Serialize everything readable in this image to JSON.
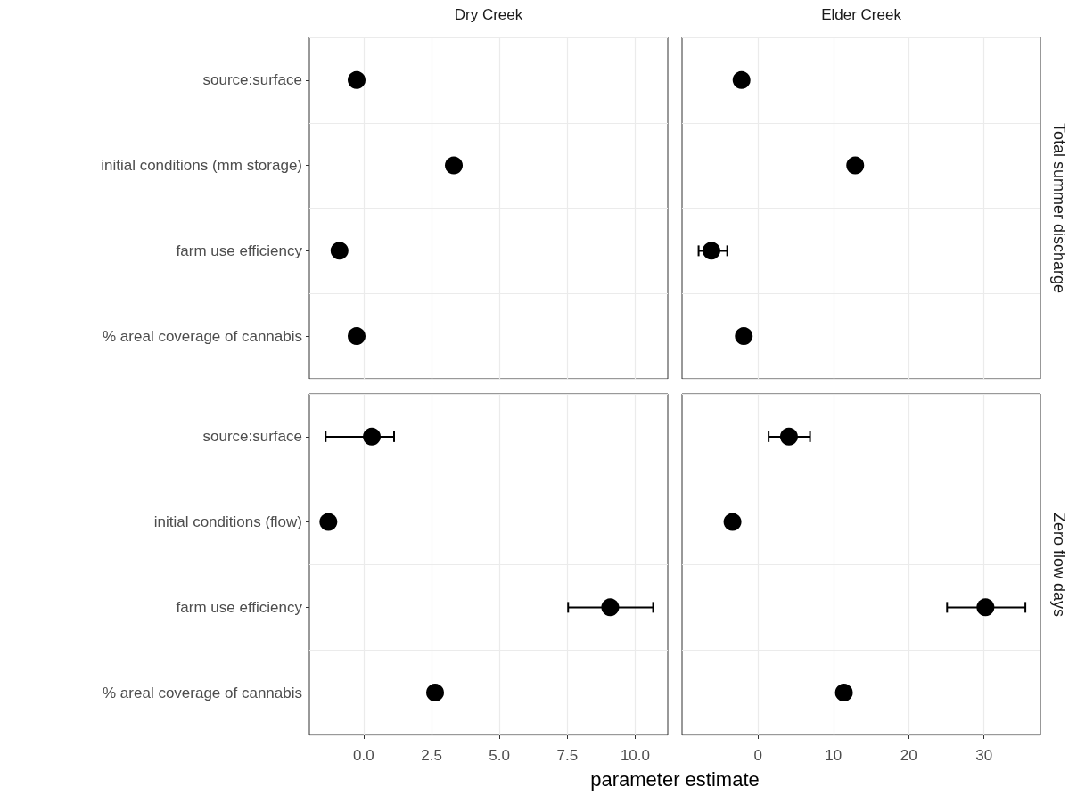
{
  "chart_data": [
    {
      "type": "scatter",
      "title": "Dry Creek",
      "orientation": "horizontal",
      "categories": [
        "source:surface",
        "initial conditions (mm storage)",
        "farm use efficiency",
        "% areal coverage of cannabis"
      ],
      "values": [
        -0.26,
        3.32,
        -0.89,
        -0.26
      ],
      "errors": [
        null,
        null,
        null,
        null
      ],
      "color": "#000000",
      "marker": "circle",
      "xlim": [
        -2.0,
        11.2
      ],
      "xticks": [
        0,
        2.5,
        5,
        7.5,
        10
      ],
      "grid": true,
      "tick_labels": "y"
    },
    {
      "type": "scatter",
      "title": "Elder Creek",
      "y2label": "Total summer discharge",
      "orientation": "horizontal",
      "categories": [
        null,
        null,
        null,
        null
      ],
      "values": [
        -2.2,
        12.9,
        -6.2,
        -1.9
      ],
      "errors": [
        null,
        null,
        [
          -7.9,
          -4.1
        ],
        null
      ],
      "color": "#000000",
      "marker": "circle",
      "xlim": [
        -10.1,
        37.5
      ],
      "xticks": [
        0,
        10,
        20,
        30
      ],
      "grid": true,
      "tick_labels": false
    },
    {
      "type": "scatter",
      "xlabel": "parameter estimate",
      "orientation": "horizontal",
      "categories": [
        "source:surface",
        "initial conditions (flow)",
        "farm use efficiency",
        "% areal coverage of cannabis"
      ],
      "values": [
        0.3,
        -1.3,
        9.08,
        2.63
      ],
      "errors": [
        [
          -1.4,
          1.12
        ],
        null,
        [
          7.53,
          10.66
        ],
        null
      ],
      "color": "#000000",
      "marker": "circle",
      "xlim": [
        -2.0,
        11.2
      ],
      "xticks": [
        {
          "value": 0,
          "label": "0.0"
        },
        2.5,
        {
          "value": 5,
          "label": "5.0"
        },
        7.5,
        {
          "value": 10,
          "label": "10.0"
        }
      ],
      "grid": true
    },
    {
      "type": "scatter",
      "y2label": "Zero flow days",
      "orientation": "horizontal",
      "categories": [
        null,
        null,
        null,
        null
      ],
      "values": [
        4.1,
        -3.4,
        30.2,
        11.4
      ],
      "errors": [
        [
          1.4,
          6.9
        ],
        null,
        [
          25.1,
          35.5
        ],
        null
      ],
      "color": "#000000",
      "marker": "circle",
      "xlim": [
        -10.1,
        37.5
      ],
      "xticks": [
        0,
        10,
        20,
        30
      ],
      "grid": true,
      "tick_labels": "x"
    }
  ]
}
